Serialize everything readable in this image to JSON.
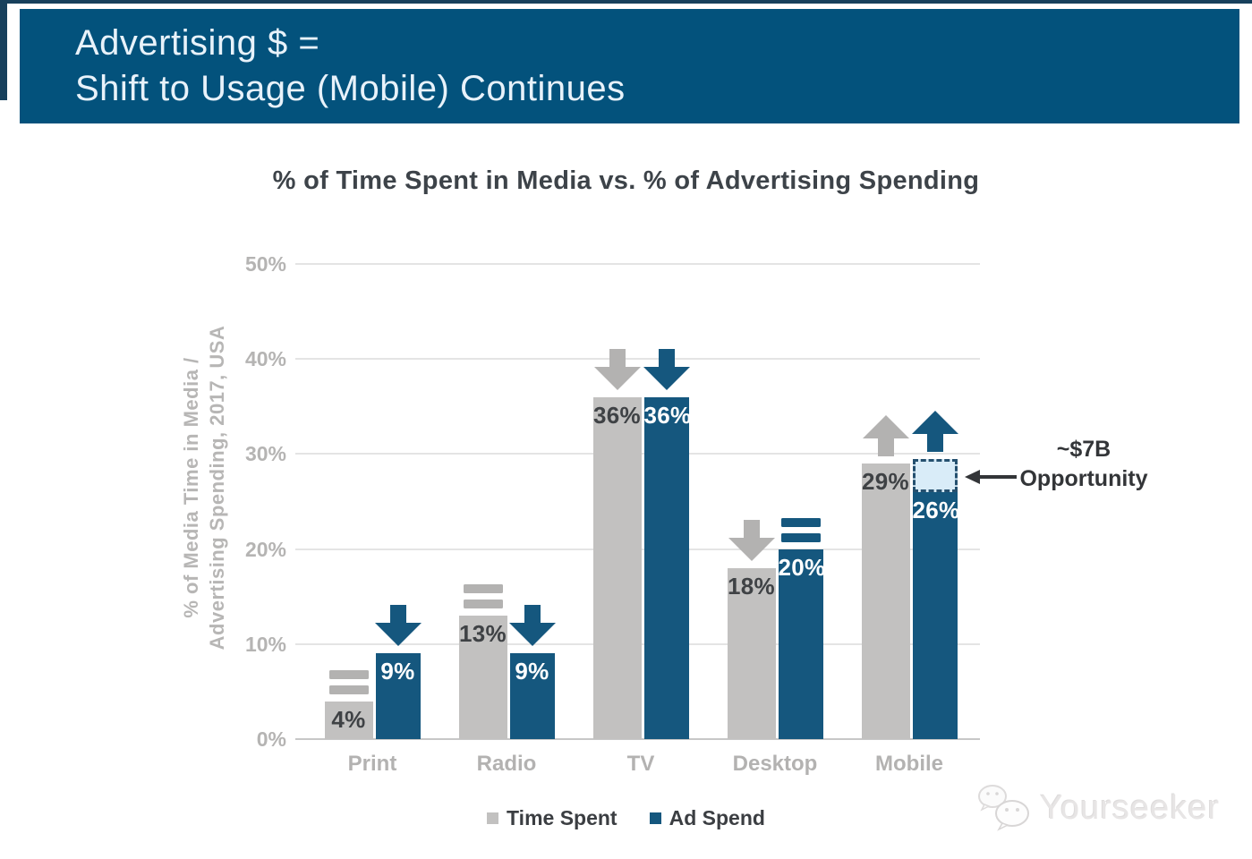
{
  "header": {
    "line1": "Advertising $ =",
    "line2": "Shift to Usage (Mobile) Continues"
  },
  "chart_data": {
    "type": "bar",
    "title": "% of Time Spent in Media vs. % of Advertising Spending",
    "ylabel": [
      "% of Media Time in Media /",
      "Advertising Spending, 2017, USA"
    ],
    "categories": [
      "Print",
      "Radio",
      "TV",
      "Desktop",
      "Mobile"
    ],
    "series": [
      {
        "name": "Time Spent",
        "color": "#c2c1c0",
        "marker_color": "#b3b2b1",
        "label_color": "#3f4245",
        "values": [
          4,
          13,
          36,
          18,
          29
        ],
        "labels": [
          "4%",
          "13%",
          "36%",
          "18%",
          "29%"
        ],
        "trends": [
          "flat",
          "flat",
          "down",
          "down",
          "up"
        ]
      },
      {
        "name": "Ad Spend",
        "color": "#15577e",
        "marker_color": "#15577e",
        "label_color": "#ffffff",
        "values": [
          9,
          9,
          36,
          20,
          26
        ],
        "labels": [
          "9%",
          "9%",
          "36%",
          "20%",
          "26%"
        ],
        "trends": [
          "down",
          "down",
          "down",
          "flat",
          "up"
        ]
      }
    ],
    "ylim": [
      0,
      50
    ],
    "yticks": [
      {
        "label": "0%",
        "value": 0
      },
      {
        "label": "10%",
        "value": 10
      },
      {
        "label": "20%",
        "value": 20
      },
      {
        "label": "30%",
        "value": 30
      },
      {
        "label": "40%",
        "value": 40
      },
      {
        "label": "50%",
        "value": 50
      }
    ],
    "grid": true,
    "legend_position": "bottom",
    "gap_box": {
      "category": "Mobile",
      "series": "Ad Spend",
      "from": 26,
      "to": 29.5,
      "fill": "#d9ecf8",
      "border": "#25506f"
    }
  },
  "annotation": {
    "line1": "~$7B",
    "line2": "Opportunity"
  },
  "legend": [
    {
      "label": "Time Spent",
      "color": "#c2c1c0"
    },
    {
      "label": "Ad Spend",
      "color": "#15577e"
    }
  ],
  "watermark": {
    "text": "Yourseeker"
  }
}
